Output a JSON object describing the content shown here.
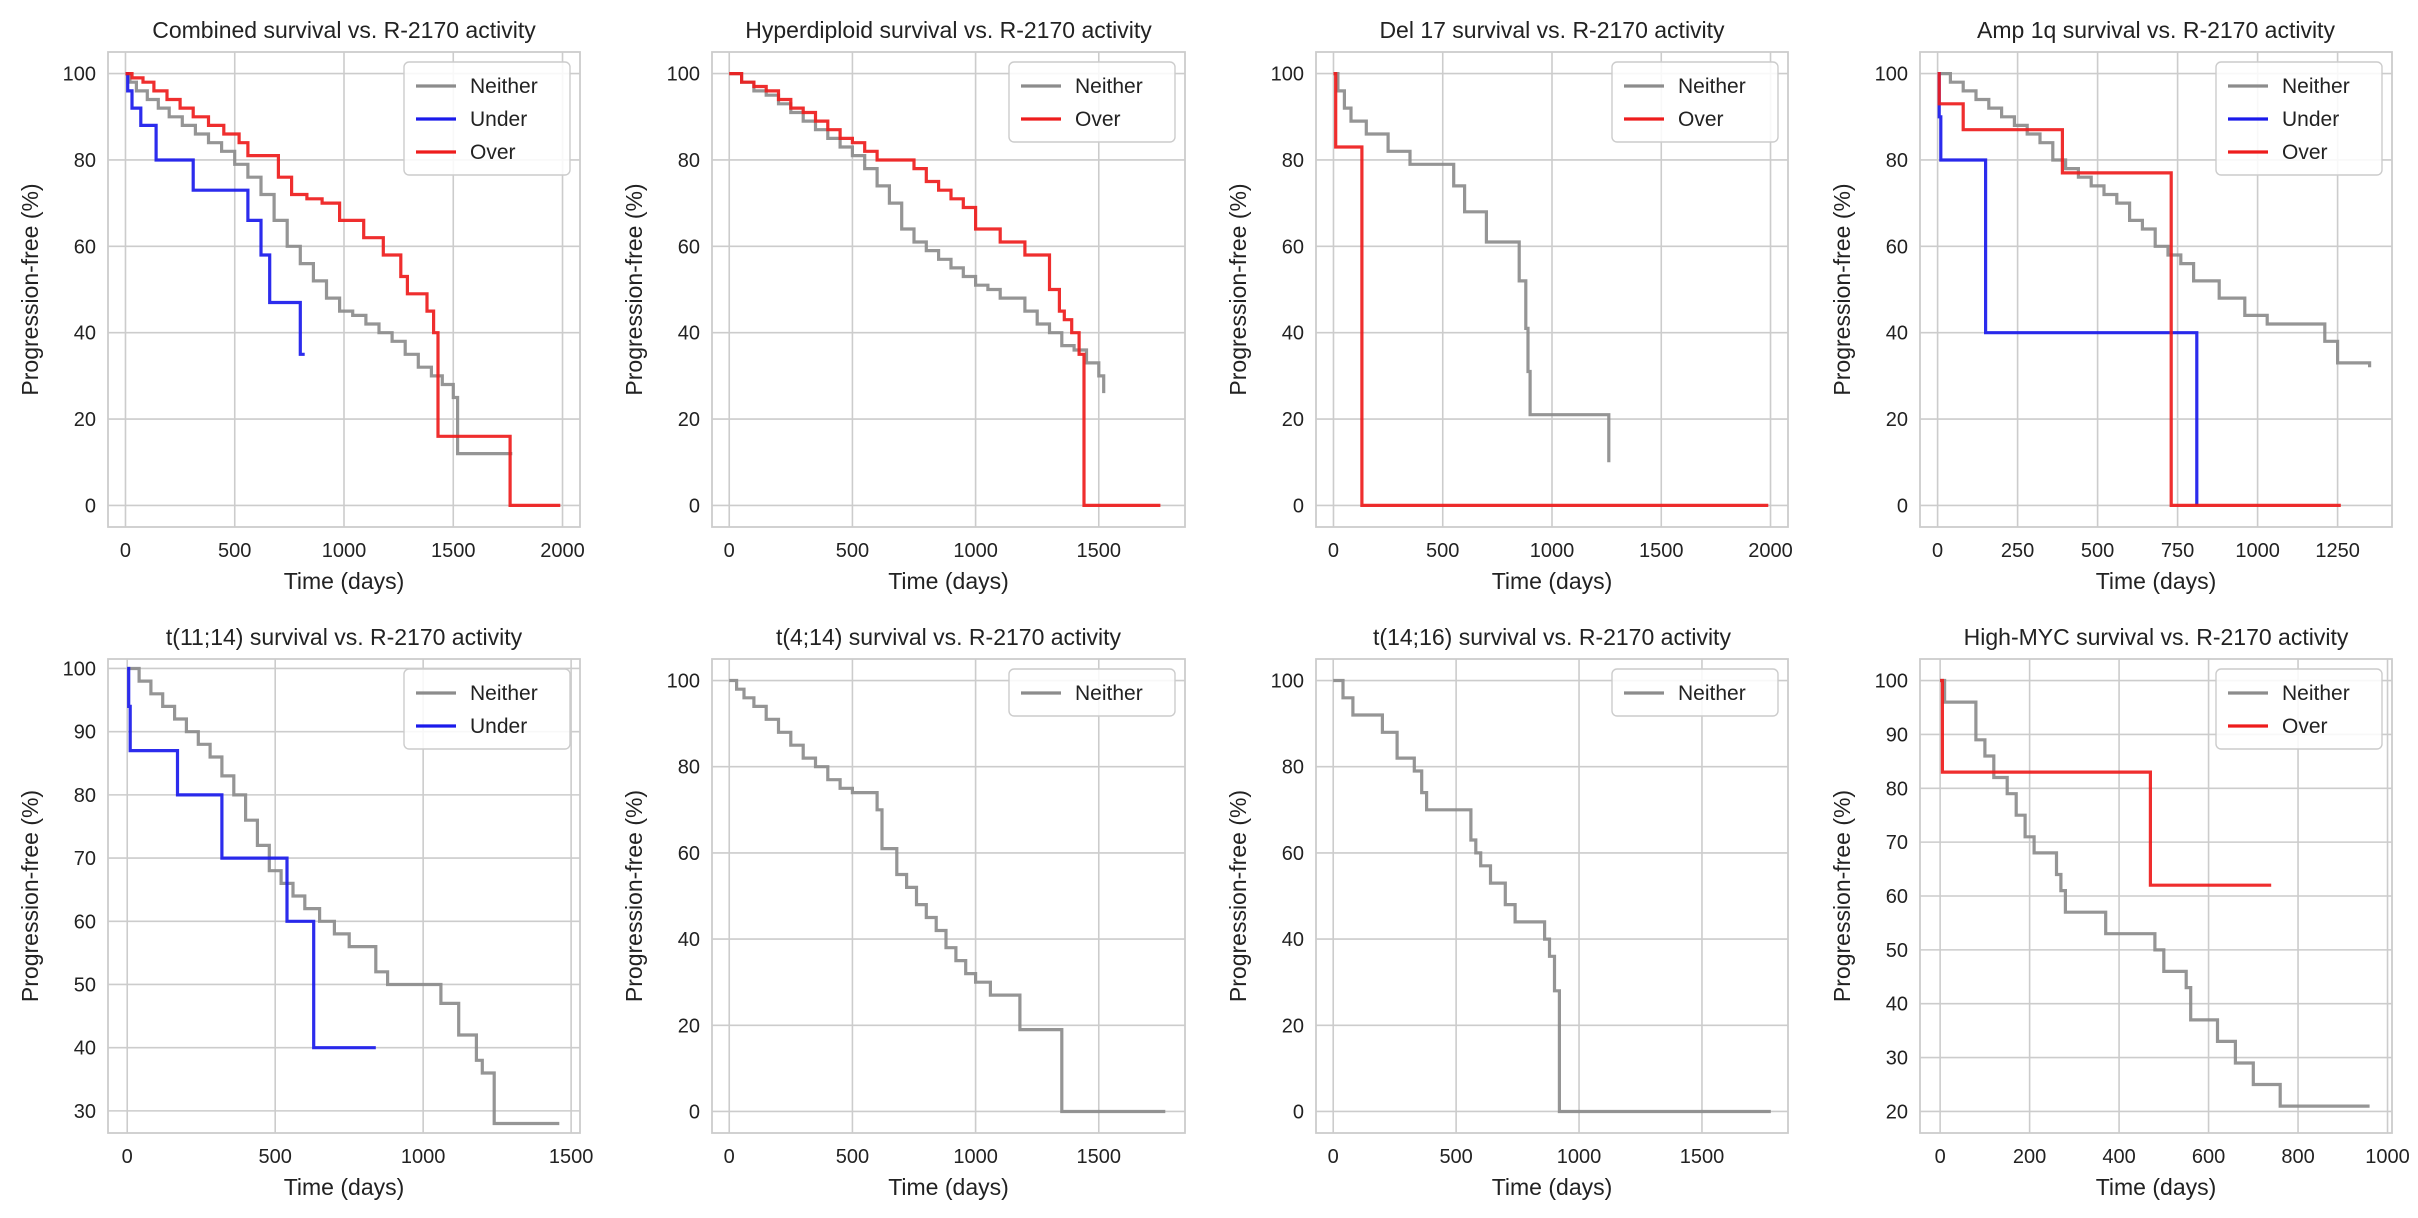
{
  "colors": {
    "neither": "#8c8c8c",
    "under": "#1a1aeb",
    "over": "#ee1c1c",
    "grid": "#cccccc"
  },
  "chart_data": [
    {
      "type": "line",
      "title": "Combined survival vs. R-2170 activity",
      "xlabel": "Time (days)",
      "ylabel": "Progression-free (%)",
      "xlim": [
        -80,
        2080
      ],
      "ylim": [
        -5,
        105
      ],
      "xticks": [
        0,
        500,
        1000,
        1500,
        2000
      ],
      "yticks": [
        0,
        20,
        40,
        60,
        80,
        100
      ],
      "grid": true,
      "legend": "top-right",
      "series": [
        {
          "name": "Neither",
          "color": "#8c8c8c",
          "x": [
            0,
            20,
            50,
            100,
            150,
            200,
            260,
            320,
            380,
            440,
            500,
            560,
            620,
            680,
            740,
            800,
            860,
            920,
            980,
            1040,
            1100,
            1160,
            1220,
            1280,
            1340,
            1400,
            1450,
            1500,
            1520,
            1770
          ],
          "y": [
            100,
            98,
            96,
            94,
            92,
            90,
            88,
            86,
            84,
            82,
            79,
            76,
            72,
            66,
            60,
            56,
            52,
            48,
            45,
            44,
            42,
            40,
            38,
            35,
            32,
            30,
            28,
            25,
            12,
            12
          ]
        },
        {
          "name": "Under",
          "color": "#1a1aeb",
          "x": [
            0,
            10,
            30,
            70,
            140,
            310,
            560,
            620,
            660,
            800,
            820
          ],
          "y": [
            100,
            96,
            92,
            88,
            80,
            73,
            66,
            58,
            47,
            35,
            35
          ]
        },
        {
          "name": "Over",
          "color": "#ee1c1c",
          "x": [
            0,
            30,
            80,
            130,
            190,
            250,
            310,
            380,
            450,
            520,
            560,
            600,
            700,
            760,
            830,
            900,
            980,
            1090,
            1180,
            1260,
            1290,
            1380,
            1410,
            1430,
            1760,
            1990
          ],
          "y": [
            100,
            99,
            98,
            96,
            94,
            92,
            90,
            88,
            86,
            84,
            81,
            81,
            76,
            72,
            71,
            70,
            66,
            62,
            58,
            53,
            49,
            45,
            40,
            16,
            0,
            0
          ]
        }
      ]
    },
    {
      "type": "line",
      "title": "Hyperdiploid survival vs. R-2170 activity",
      "xlabel": "Time (days)",
      "ylabel": "Progression-free (%)",
      "xlim": [
        -70,
        1850
      ],
      "ylim": [
        -5,
        105
      ],
      "xticks": [
        0,
        500,
        1000,
        1500
      ],
      "yticks": [
        0,
        20,
        40,
        60,
        80,
        100
      ],
      "grid": true,
      "legend": "top-right",
      "series": [
        {
          "name": "Neither",
          "color": "#8c8c8c",
          "x": [
            0,
            50,
            100,
            150,
            200,
            250,
            300,
            350,
            400,
            450,
            500,
            550,
            600,
            650,
            700,
            750,
            800,
            850,
            900,
            950,
            1000,
            1050,
            1100,
            1150,
            1200,
            1250,
            1300,
            1350,
            1400,
            1450,
            1500,
            1520
          ],
          "y": [
            100,
            98,
            96,
            95,
            93,
            91,
            89,
            87,
            85,
            83,
            81,
            78,
            74,
            70,
            64,
            61,
            59,
            57,
            55,
            53,
            51,
            50,
            48,
            48,
            45,
            42,
            40,
            37,
            36,
            33,
            30,
            26
          ]
        },
        {
          "name": "Over",
          "color": "#ee1c1c",
          "x": [
            0,
            50,
            100,
            150,
            200,
            250,
            300,
            350,
            400,
            450,
            500,
            550,
            600,
            650,
            700,
            750,
            800,
            850,
            900,
            950,
            1000,
            1100,
            1200,
            1300,
            1340,
            1360,
            1390,
            1420,
            1440,
            1750
          ],
          "y": [
            100,
            98,
            97,
            96,
            94,
            92,
            91,
            89,
            87,
            85,
            84,
            82,
            80,
            80,
            80,
            78,
            75,
            73,
            71,
            69,
            64,
            61,
            58,
            50,
            45,
            43,
            40,
            35,
            0,
            0
          ]
        }
      ]
    },
    {
      "type": "line",
      "title": "Del 17 survival vs. R-2170 activity",
      "xlabel": "Time (days)",
      "ylabel": "Progression-free (%)",
      "xlim": [
        -80,
        2080
      ],
      "ylim": [
        -5,
        105
      ],
      "xticks": [
        0,
        500,
        1000,
        1500,
        2000
      ],
      "yticks": [
        0,
        20,
        40,
        60,
        80,
        100
      ],
      "grid": true,
      "legend": "top-right",
      "series": [
        {
          "name": "Neither",
          "color": "#8c8c8c",
          "x": [
            0,
            20,
            50,
            80,
            150,
            250,
            350,
            550,
            600,
            700,
            850,
            880,
            890,
            900,
            1260
          ],
          "y": [
            100,
            96,
            92,
            89,
            86,
            82,
            79,
            74,
            68,
            61,
            52,
            41,
            31,
            21,
            10
          ]
        },
        {
          "name": "Over",
          "color": "#ee1c1c",
          "x": [
            0,
            10,
            130,
            1990
          ],
          "y": [
            100,
            83,
            0,
            0
          ]
        }
      ]
    },
    {
      "type": "line",
      "title": "Amp 1q survival vs. R-2170 activity",
      "xlabel": "Time (days)",
      "ylabel": "Progression-free (%)",
      "xlim": [
        -55,
        1420
      ],
      "ylim": [
        -5,
        105
      ],
      "xticks": [
        0,
        250,
        500,
        750,
        1000,
        1250
      ],
      "yticks": [
        0,
        20,
        40,
        60,
        80,
        100
      ],
      "grid": true,
      "legend": "top-right",
      "series": [
        {
          "name": "Neither",
          "color": "#8c8c8c",
          "x": [
            0,
            40,
            80,
            120,
            160,
            200,
            240,
            280,
            320,
            360,
            400,
            440,
            480,
            520,
            560,
            600,
            640,
            680,
            720,
            760,
            800,
            880,
            960,
            1030,
            1210,
            1250,
            1350
          ],
          "y": [
            100,
            98,
            96,
            94,
            92,
            90,
            88,
            86,
            84,
            80,
            78,
            76,
            74,
            72,
            70,
            66,
            64,
            60,
            58,
            56,
            52,
            48,
            44,
            42,
            38,
            33,
            32
          ]
        },
        {
          "name": "Under",
          "color": "#1a1aeb",
          "x": [
            0,
            5,
            10,
            150,
            800,
            810
          ],
          "y": [
            100,
            90,
            80,
            40,
            40,
            0
          ]
        },
        {
          "name": "Over",
          "color": "#ee1c1c",
          "x": [
            0,
            5,
            80,
            390,
            720,
            730,
            1260
          ],
          "y": [
            100,
            93,
            87,
            77,
            77,
            0,
            0
          ]
        }
      ]
    },
    {
      "type": "line",
      "title": "t(11;14) survival vs. R-2170 activity",
      "xlabel": "Time (days)",
      "ylabel": "Progression-free (%)",
      "xlim": [
        -65,
        1530
      ],
      "ylim": [
        26.5,
        101.5
      ],
      "xticks": [
        0,
        500,
        1000,
        1500
      ],
      "yticks": [
        30,
        40,
        50,
        60,
        70,
        80,
        90,
        100
      ],
      "grid": true,
      "legend": "top-right",
      "series": [
        {
          "name": "Neither",
          "color": "#8c8c8c",
          "x": [
            0,
            40,
            80,
            120,
            160,
            200,
            240,
            280,
            320,
            360,
            400,
            440,
            480,
            520,
            560,
            600,
            650,
            700,
            750,
            840,
            880,
            1060,
            1120,
            1180,
            1200,
            1240,
            1460
          ],
          "y": [
            100,
            98,
            96,
            94,
            92,
            90,
            88,
            86,
            83,
            80,
            76,
            72,
            68,
            66,
            64,
            62,
            60,
            58,
            56,
            52,
            50,
            47,
            42,
            38,
            36,
            28,
            28
          ]
        },
        {
          "name": "Under",
          "color": "#1a1aeb",
          "x": [
            0,
            5,
            10,
            170,
            320,
            540,
            630,
            840
          ],
          "y": [
            100,
            94,
            87,
            80,
            70,
            60,
            40,
            40
          ]
        }
      ]
    },
    {
      "type": "line",
      "title": "t(4;14) survival vs. R-2170 activity",
      "xlabel": "Time (days)",
      "ylabel": "Progression-free (%)",
      "xlim": [
        -70,
        1850
      ],
      "ylim": [
        -5,
        105
      ],
      "xticks": [
        0,
        500,
        1000,
        1500
      ],
      "yticks": [
        0,
        20,
        40,
        60,
        80,
        100
      ],
      "grid": true,
      "legend": "top-right",
      "series": [
        {
          "name": "Neither",
          "color": "#8c8c8c",
          "x": [
            0,
            30,
            60,
            100,
            150,
            200,
            250,
            300,
            350,
            400,
            450,
            500,
            550,
            600,
            620,
            680,
            720,
            760,
            800,
            840,
            880,
            920,
            960,
            1000,
            1060,
            1180,
            1350,
            1770
          ],
          "y": [
            100,
            98,
            96,
            94,
            91,
            88,
            85,
            82,
            80,
            77,
            75,
            74,
            74,
            70,
            61,
            55,
            52,
            48,
            45,
            42,
            38,
            35,
            32,
            30,
            27,
            19,
            0,
            0
          ]
        }
      ]
    },
    {
      "type": "line",
      "title": "t(14;16) survival vs. R-2170 activity",
      "xlabel": "Time (days)",
      "ylabel": "Progression-free (%)",
      "xlim": [
        -70,
        1850
      ],
      "ylim": [
        -5,
        105
      ],
      "xticks": [
        0,
        500,
        1000,
        1500
      ],
      "yticks": [
        0,
        20,
        40,
        60,
        80,
        100
      ],
      "grid": true,
      "legend": "top-right",
      "series": [
        {
          "name": "Neither",
          "color": "#8c8c8c",
          "x": [
            0,
            40,
            80,
            200,
            260,
            330,
            360,
            380,
            560,
            580,
            600,
            640,
            700,
            740,
            860,
            880,
            900,
            920,
            1780
          ],
          "y": [
            100,
            96,
            92,
            88,
            82,
            79,
            74,
            70,
            63,
            60,
            57,
            53,
            48,
            44,
            40,
            36,
            28,
            0,
            0
          ]
        }
      ]
    },
    {
      "type": "line",
      "title": "High-MYC survival vs. R-2170 activity",
      "xlabel": "Time (days)",
      "ylabel": "Progression-free (%)",
      "xlim": [
        -45,
        1010
      ],
      "ylim": [
        16,
        104
      ],
      "xticks": [
        0,
        200,
        400,
        600,
        800,
        1000
      ],
      "yticks": [
        20,
        30,
        40,
        50,
        60,
        70,
        80,
        90,
        100
      ],
      "grid": true,
      "legend": "top-right",
      "series": [
        {
          "name": "Neither",
          "color": "#8c8c8c",
          "x": [
            0,
            10,
            80,
            100,
            120,
            150,
            170,
            190,
            210,
            260,
            270,
            280,
            370,
            480,
            500,
            550,
            560,
            620,
            660,
            700,
            720,
            760,
            960
          ],
          "y": [
            100,
            96,
            89,
            86,
            82,
            79,
            75,
            71,
            68,
            64,
            61,
            57,
            53,
            50,
            46,
            43,
            37,
            33,
            29,
            25,
            25,
            21,
            21
          ]
        },
        {
          "name": "Over",
          "color": "#ee1c1c",
          "x": [
            0,
            5,
            470,
            740
          ],
          "y": [
            100,
            83,
            62,
            62
          ]
        }
      ]
    }
  ]
}
